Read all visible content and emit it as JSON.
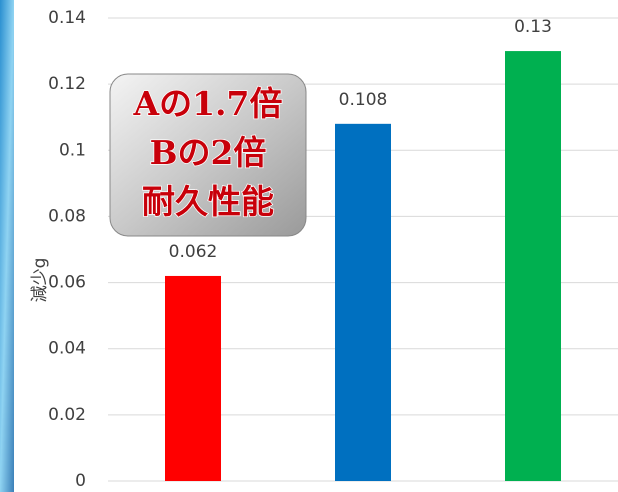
{
  "chart_data": {
    "type": "bar",
    "y_label": "減少g",
    "categories": [
      null,
      null,
      null
    ],
    "values": [
      0.062,
      0.108,
      0.13
    ],
    "colors": [
      "#ff0000",
      "#0070c0",
      "#00b050"
    ],
    "ylim": [
      0,
      0.14
    ],
    "yticks": [
      0,
      0.02,
      0.04,
      0.06,
      0.08,
      0.1,
      0.12,
      0.14
    ],
    "grid": true,
    "annotation": [
      "Aの1.7倍",
      "Bの2倍",
      "耐久性能"
    ]
  }
}
